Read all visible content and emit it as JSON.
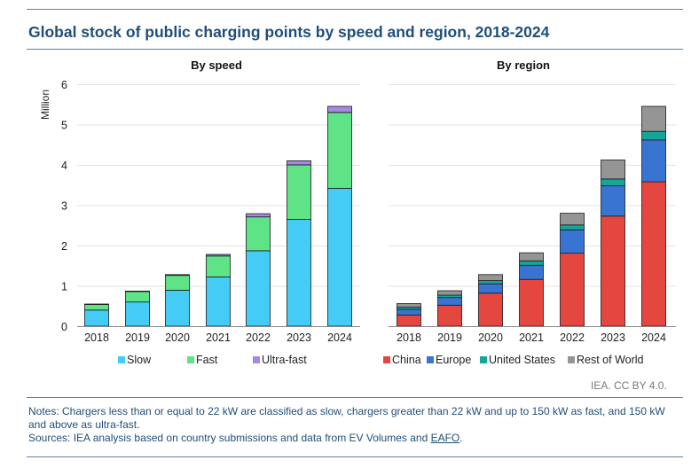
{
  "title": "Global stock of public charging points by speed and region, 2018-2024",
  "credit": "IEA. CC BY 4.0.",
  "notes": "Notes: Chargers less than or equal to 22 kW are classified as slow, chargers greater than 22 kW and up to 150 kW as fast, and 150 kW and above as ultra-fast.",
  "sources": {
    "prefix": "Sources: IEA analysis based on country submissions and data from EV Volumes and ",
    "link": "EAFO",
    "suffix": "."
  },
  "colors": {
    "slow": "#45ccf6",
    "fast": "#5fe387",
    "ultrafast": "#a688e6",
    "china": "#e4473f",
    "europe": "#3a74d3",
    "us": "#13a79a",
    "row": "#959595",
    "title": "#1f4e79"
  },
  "chart_data": [
    {
      "type": "bar",
      "stacked": true,
      "title": "By speed",
      "ylabel": "Million",
      "ylim": [
        0,
        6
      ],
      "yticks": [
        "0",
        "1",
        "2",
        "3",
        "4",
        "5",
        "6"
      ],
      "categories": [
        "2018",
        "2019",
        "2020",
        "2021",
        "2022",
        "2023",
        "2024"
      ],
      "legend_position": "bottom",
      "series": [
        {
          "name": "Slow",
          "color": "#45ccf6",
          "values": [
            0.4,
            0.6,
            0.89,
            1.22,
            1.87,
            2.65,
            3.42
          ]
        },
        {
          "name": "Fast",
          "color": "#5fe387",
          "values": [
            0.14,
            0.26,
            0.37,
            0.52,
            0.84,
            1.35,
            1.88
          ]
        },
        {
          "name": "Ultra-fast",
          "color": "#a688e6",
          "values": [
            0.01,
            0.01,
            0.02,
            0.04,
            0.08,
            0.1,
            0.15
          ]
        }
      ]
    },
    {
      "type": "bar",
      "stacked": true,
      "title": "By region",
      "ylabel": "",
      "ylim": [
        0,
        6
      ],
      "categories": [
        "2018",
        "2019",
        "2020",
        "2021",
        "2022",
        "2023",
        "2024"
      ],
      "legend_position": "bottom",
      "series": [
        {
          "name": "China",
          "color": "#e4473f",
          "values": [
            0.28,
            0.52,
            0.82,
            1.16,
            1.81,
            2.73,
            3.58
          ]
        },
        {
          "name": "Europe",
          "color": "#3a74d3",
          "values": [
            0.14,
            0.19,
            0.23,
            0.35,
            0.58,
            0.75,
            1.04
          ]
        },
        {
          "name": "United States",
          "color": "#13a79a",
          "values": [
            0.05,
            0.06,
            0.08,
            0.11,
            0.12,
            0.17,
            0.21
          ]
        },
        {
          "name": "Rest of World",
          "color": "#959595",
          "values": [
            0.09,
            0.11,
            0.15,
            0.2,
            0.29,
            0.47,
            0.62
          ]
        }
      ]
    }
  ]
}
